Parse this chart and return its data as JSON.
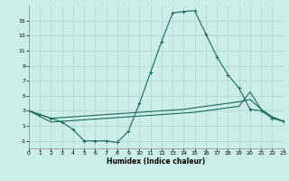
{
  "xlabel": "Humidex (Indice chaleur)",
  "bg_color": "#cceee8",
  "grid_color": "#aad4ce",
  "line_color": "#1a6b5a",
  "xmin": 0,
  "xmax": 23,
  "ymin": -2,
  "ymax": 17,
  "yticks": [
    -1,
    1,
    3,
    5,
    7,
    9,
    11,
    13,
    15
  ],
  "xticks": [
    0,
    1,
    2,
    3,
    4,
    5,
    6,
    7,
    8,
    9,
    10,
    11,
    12,
    13,
    14,
    15,
    16,
    17,
    18,
    19,
    20,
    21,
    22,
    23
  ],
  "line1_x": [
    0,
    1,
    2,
    3,
    4,
    5,
    6,
    7,
    8,
    9,
    10,
    11,
    12,
    13,
    14,
    15,
    16,
    17,
    18,
    19,
    20,
    21,
    22,
    23
  ],
  "line1_y": [
    3.0,
    2.5,
    2.0,
    1.5,
    0.5,
    -1.0,
    -1.0,
    -1.0,
    -1.2,
    0.3,
    4.0,
    8.1,
    12.2,
    16.0,
    16.2,
    16.3,
    13.2,
    10.2,
    7.8,
    6.0,
    3.2,
    3.0,
    2.0,
    1.6
  ],
  "line2_x": [
    0,
    2,
    3,
    4,
    5,
    6,
    7,
    8,
    9,
    10,
    11,
    12,
    13,
    14,
    15,
    16,
    17,
    18,
    19,
    20,
    21,
    22,
    23
  ],
  "line2_y": [
    3.0,
    2.0,
    2.1,
    2.2,
    2.3,
    2.4,
    2.5,
    2.6,
    2.7,
    2.8,
    2.9,
    3.0,
    3.1,
    3.2,
    3.4,
    3.6,
    3.8,
    4.0,
    4.2,
    4.5,
    3.2,
    2.2,
    1.6
  ],
  "line3_x": [
    0,
    2,
    3,
    4,
    5,
    6,
    7,
    8,
    9,
    10,
    11,
    12,
    13,
    14,
    15,
    16,
    17,
    18,
    19,
    20,
    21,
    22,
    23
  ],
  "line3_y": [
    3.0,
    1.5,
    1.6,
    1.7,
    1.8,
    1.9,
    2.0,
    2.1,
    2.2,
    2.3,
    2.4,
    2.5,
    2.6,
    2.7,
    2.8,
    3.0,
    3.2,
    3.4,
    3.6,
    5.5,
    3.2,
    2.2,
    1.6
  ]
}
